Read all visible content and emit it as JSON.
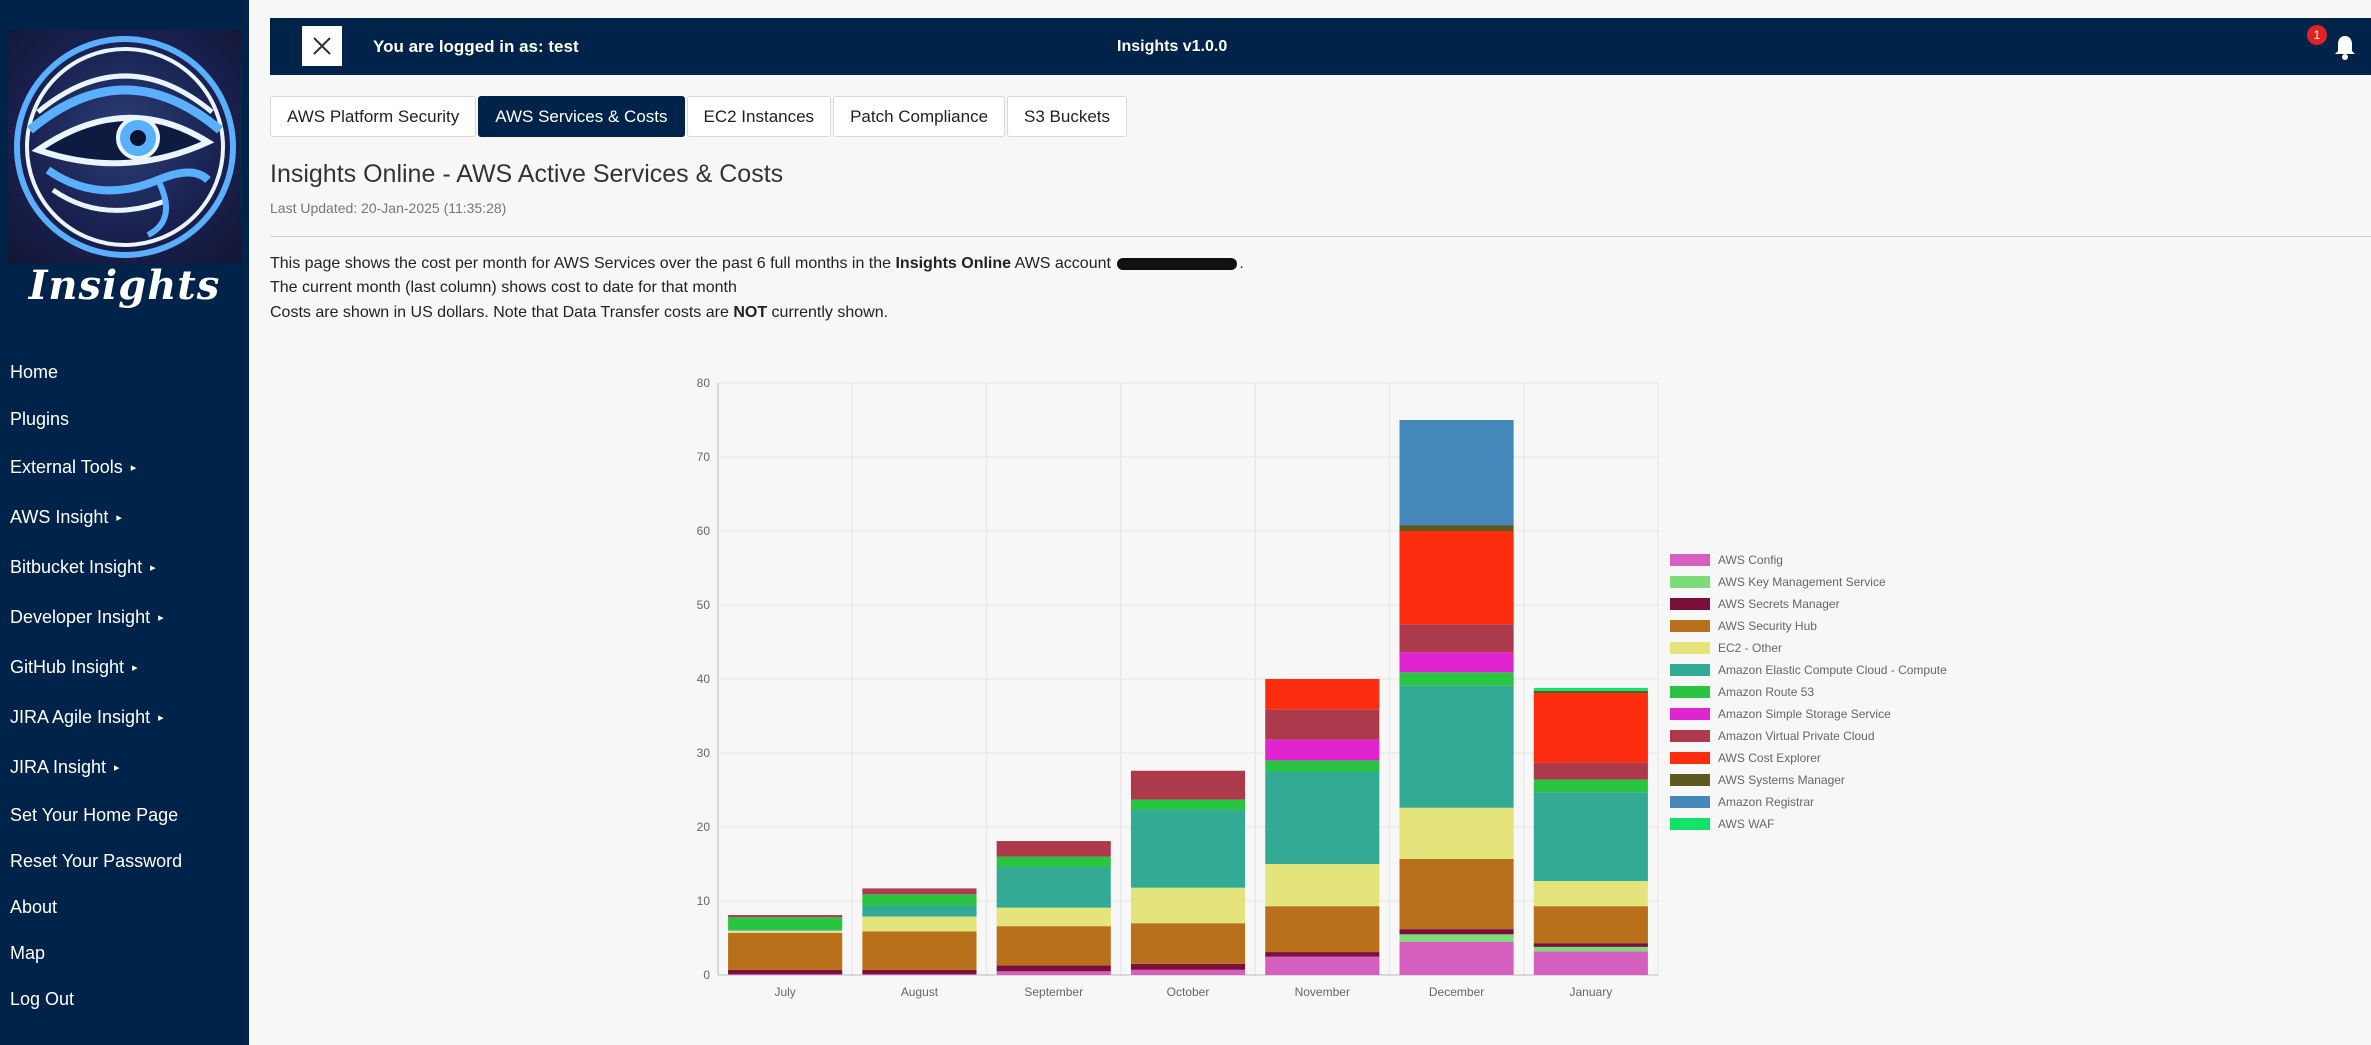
{
  "sidebar": {
    "brand": "Insights",
    "items": [
      {
        "label": "Home",
        "arrow": ""
      },
      {
        "label": "Plugins",
        "arrow": ""
      },
      {
        "label": "External Tools",
        "arrow": "▸"
      },
      {
        "label": "AWS Insight",
        "arrow": "▸"
      },
      {
        "label": "Bitbucket Insight",
        "arrow": "▸"
      },
      {
        "label": "Developer Insight",
        "arrow": "▸"
      },
      {
        "label": "GitHub Insight",
        "arrow": "▸"
      },
      {
        "label": "JIRA Agile Insight",
        "arrow": "▸"
      },
      {
        "label": "JIRA Insight",
        "arrow": "▸"
      },
      {
        "label": "Set Your Home Page",
        "arrow": ""
      },
      {
        "label": "Reset Your Password",
        "arrow": ""
      },
      {
        "label": "About",
        "arrow": ""
      },
      {
        "label": "Map",
        "arrow": ""
      },
      {
        "label": "Log Out",
        "arrow": ""
      }
    ]
  },
  "header": {
    "login_text": "You are logged in as: test",
    "app_title": "Insights v1.0.0",
    "notification_count": "1"
  },
  "tabs": [
    {
      "label": "AWS Platform Security",
      "active": false
    },
    {
      "label": "AWS Services & Costs",
      "active": true
    },
    {
      "label": "EC2 Instances",
      "active": false
    },
    {
      "label": "Patch Compliance",
      "active": false
    },
    {
      "label": "S3 Buckets",
      "active": false
    }
  ],
  "page": {
    "title": "Insights Online - AWS Active Services & Costs",
    "last_updated": "Last Updated: 20-Jan-2025 (11:35:28)",
    "desc1_pre": "This page shows the cost per month for AWS Services over the past 6 full months in the ",
    "desc1_bold": "Insights Online",
    "desc1_post": " AWS account ",
    "desc1_end": ".",
    "desc2": "The current month (last column) shows cost to date for that month",
    "desc3_pre": "Costs are shown in US dollars. Note that Data Transfer costs are ",
    "desc3_bold": "NOT",
    "desc3_post": " currently shown."
  },
  "colors": {
    "primary": "#00234a",
    "badge": "#e02424"
  },
  "chart_data": {
    "type": "bar",
    "stacked": true,
    "categories": [
      "July",
      "August",
      "September",
      "October",
      "November",
      "December",
      "January"
    ],
    "ylim": [
      0,
      80
    ],
    "yticks": [
      0,
      10,
      20,
      30,
      40,
      50,
      60,
      70,
      80
    ],
    "legend_position": "right",
    "series": [
      {
        "name": "AWS Config",
        "color": "#d55fbf",
        "values": [
          0.1,
          0.1,
          0.5,
          0.7,
          2.5,
          4.5,
          3.2
        ]
      },
      {
        "name": "AWS Key Management Service",
        "color": "#7ddc77",
        "values": [
          0,
          0,
          0,
          0,
          0,
          1.0,
          0.6
        ]
      },
      {
        "name": "AWS Secrets Manager",
        "color": "#7a0f3c",
        "values": [
          0.6,
          0.6,
          0.8,
          0.8,
          0.6,
          0.7,
          0.5
        ]
      },
      {
        "name": "AWS Security Hub",
        "color": "#b8701a",
        "values": [
          5.0,
          5.2,
          5.3,
          5.5,
          6.2,
          9.5,
          5.0
        ]
      },
      {
        "name": "EC2 - Other",
        "color": "#e3e47c",
        "values": [
          0.3,
          2.0,
          2.5,
          4.8,
          5.7,
          6.9,
          3.4
        ]
      },
      {
        "name": "Amazon Elastic Compute Cloud - Compute",
        "color": "#33ab94",
        "values": [
          0.2,
          1.5,
          5.5,
          10.5,
          12.5,
          16.5,
          12.0
        ]
      },
      {
        "name": "Amazon Route 53",
        "color": "#29c542",
        "values": [
          1.6,
          1.5,
          1.4,
          1.4,
          1.5,
          1.8,
          1.7
        ]
      },
      {
        "name": "Amazon Simple Storage Service",
        "color": "#e024cf",
        "values": [
          0,
          0,
          0,
          0,
          2.8,
          2.7,
          0
        ]
      },
      {
        "name": "Amazon Virtual Private Cloud",
        "color": "#ad3a4c",
        "values": [
          0.3,
          0.8,
          2.1,
          3.9,
          4.1,
          3.8,
          2.3
        ]
      },
      {
        "name": "AWS Cost Explorer",
        "color": "#fb2d0e",
        "values": [
          0,
          0,
          0,
          0,
          4.1,
          12.6,
          9.4
        ]
      },
      {
        "name": "AWS Systems Manager",
        "color": "#5d5a20",
        "values": [
          0,
          0,
          0,
          0,
          0,
          0.8,
          0.3
        ]
      },
      {
        "name": "Amazon Registrar",
        "color": "#4588bb",
        "values": [
          0,
          0,
          0,
          0,
          0,
          14.2,
          0
        ]
      },
      {
        "name": "AWS WAF",
        "color": "#11e36a",
        "values": [
          0,
          0,
          0,
          0,
          0,
          0,
          0.4
        ]
      }
    ]
  }
}
